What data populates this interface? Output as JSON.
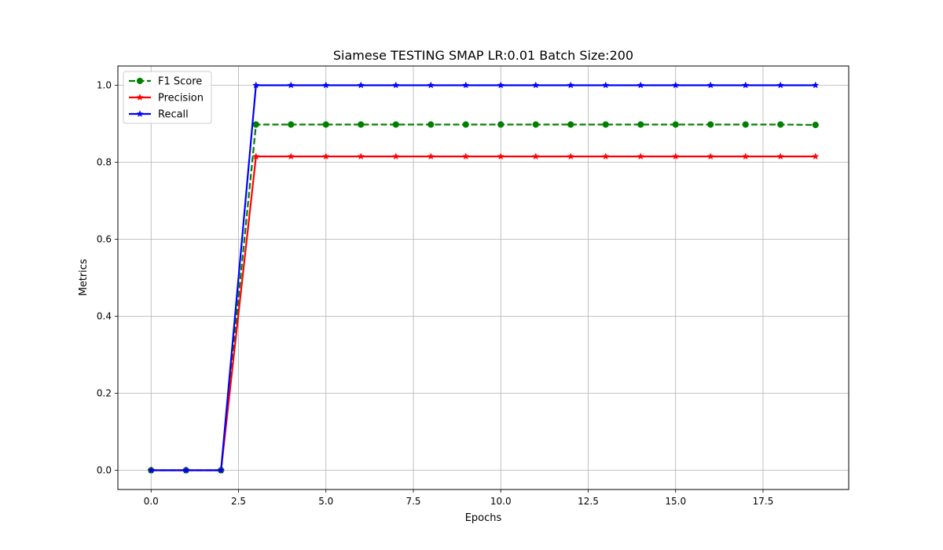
{
  "chart_data": {
    "type": "line",
    "title": "Siamese TESTING SMAP LR:0.01 Batch Size:200",
    "xlabel": "Epochs",
    "ylabel": "Metrics",
    "xlim": [
      -0.95,
      19.95
    ],
    "ylim": [
      -0.05,
      1.05
    ],
    "x_ticks": [
      0.0,
      2.5,
      5.0,
      7.5,
      10.0,
      12.5,
      15.0,
      17.5
    ],
    "x_tick_labels": [
      "0.0",
      "2.5",
      "5.0",
      "7.5",
      "10.0",
      "12.5",
      "15.0",
      "17.5"
    ],
    "y_ticks": [
      0.0,
      0.2,
      0.4,
      0.6,
      0.8,
      1.0
    ],
    "y_tick_labels": [
      "0.0",
      "0.2",
      "0.4",
      "0.6",
      "0.8",
      "1.0"
    ],
    "grid": true,
    "legend_position": "upper-left",
    "x": [
      0,
      1,
      2,
      3,
      4,
      5,
      6,
      7,
      8,
      9,
      10,
      11,
      12,
      13,
      14,
      15,
      16,
      17,
      18,
      19
    ],
    "series": [
      {
        "name": "F1 Score",
        "color": "#008000",
        "line_style": "dashed",
        "marker": "circle",
        "values": [
          0.0,
          0.0,
          0.0,
          0.898,
          0.898,
          0.898,
          0.898,
          0.898,
          0.898,
          0.898,
          0.898,
          0.898,
          0.898,
          0.898,
          0.898,
          0.898,
          0.898,
          0.898,
          0.898,
          0.897
        ]
      },
      {
        "name": "Precision",
        "color": "#ff0000",
        "line_style": "solid",
        "marker": "star",
        "values": [
          0.0,
          0.0,
          0.0,
          0.815,
          0.815,
          0.815,
          0.815,
          0.815,
          0.815,
          0.815,
          0.815,
          0.815,
          0.815,
          0.815,
          0.815,
          0.815,
          0.815,
          0.815,
          0.815,
          0.815
        ]
      },
      {
        "name": "Recall",
        "color": "#0000ff",
        "line_style": "solid",
        "marker": "star",
        "values": [
          0.0,
          0.0,
          0.0,
          1.0,
          1.0,
          1.0,
          1.0,
          1.0,
          1.0,
          1.0,
          1.0,
          1.0,
          1.0,
          1.0,
          1.0,
          1.0,
          1.0,
          1.0,
          1.0,
          1.0
        ]
      }
    ]
  }
}
